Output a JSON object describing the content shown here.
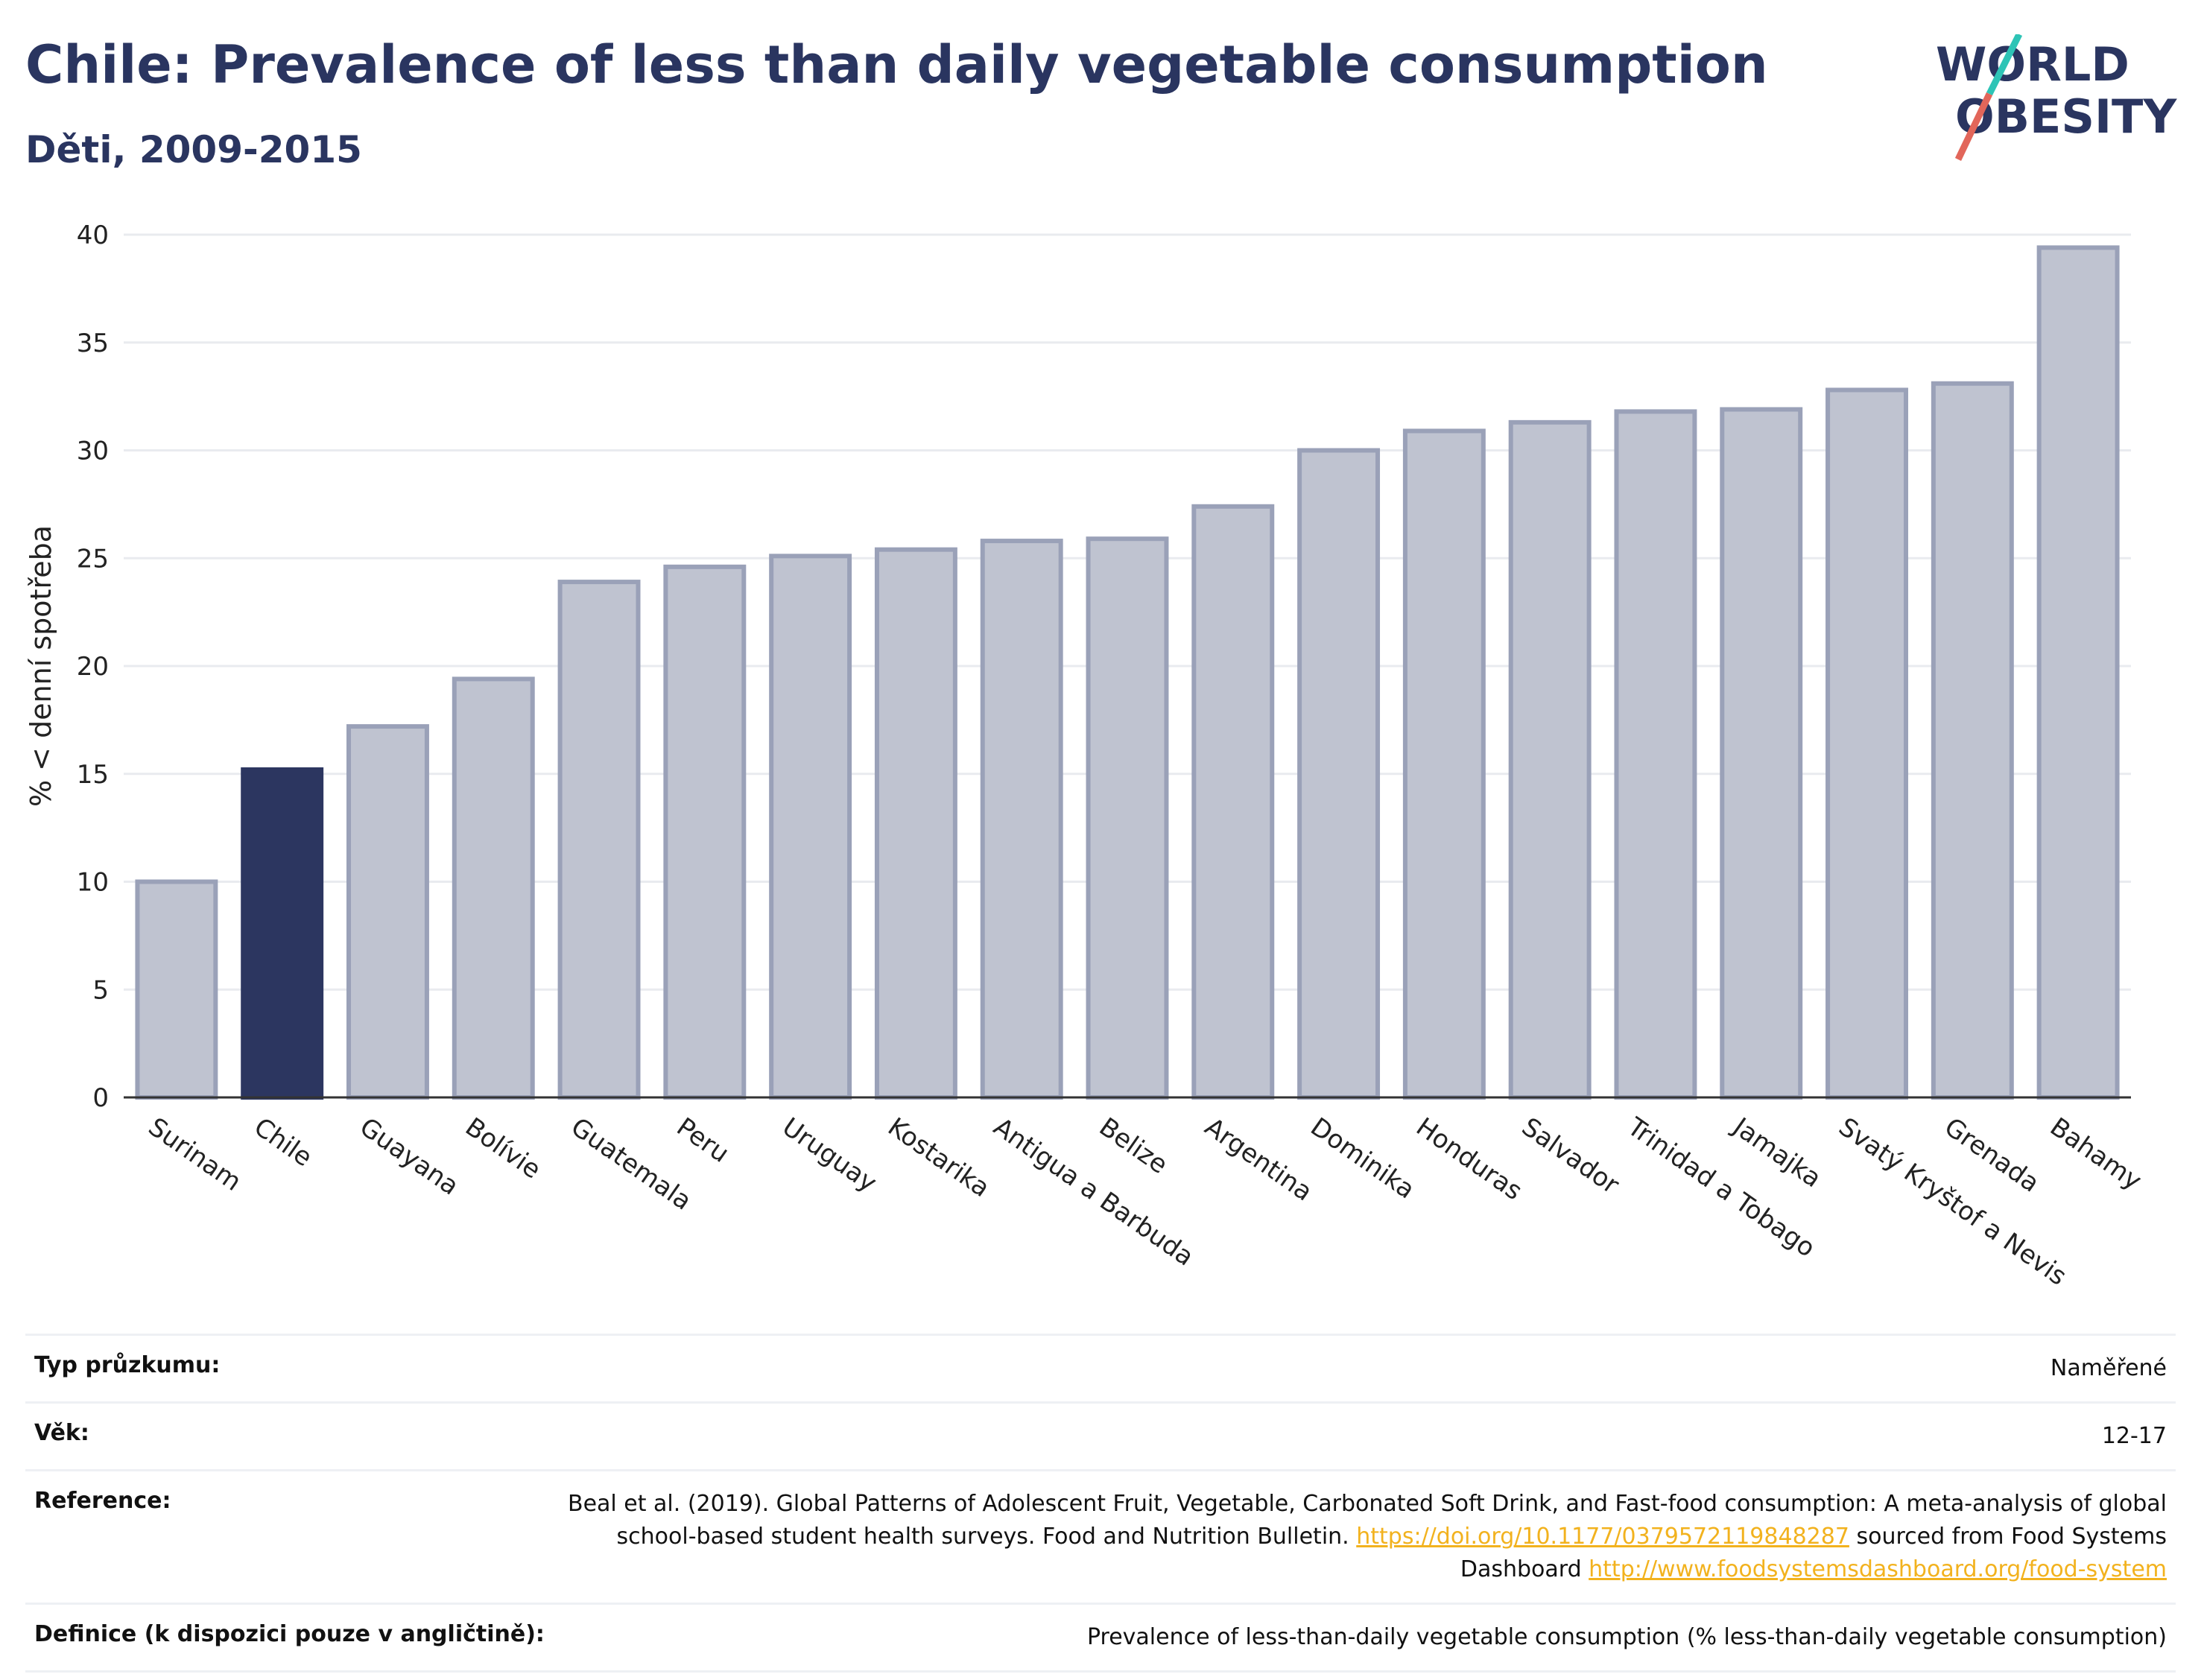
{
  "header": {
    "title": "Chile: Prevalence of less than daily vegetable consumption",
    "subtitle": "Děti, 2009-2015",
    "logo_line1": "WORLD",
    "logo_line2": "OBESITY"
  },
  "colors": {
    "bar": "#bfc3d0",
    "bar_stroke": "#9aa1b8",
    "highlight": "#2c3660",
    "grid": "#e9ebef",
    "accent_teal": "#2ec4b6",
    "accent_red": "#e2665a"
  },
  "chart_data": {
    "type": "bar",
    "title": "Chile: Prevalence of less than daily vegetable consumption",
    "subtitle": "Děti, 2009-2015",
    "xlabel": "",
    "ylabel": "% < denní spotřeba",
    "ylim": [
      0,
      40
    ],
    "yticks": [
      0,
      5,
      10,
      15,
      20,
      25,
      30,
      35,
      40
    ],
    "grid": true,
    "highlight": "Chile",
    "categories": [
      "Surinam",
      "Chile",
      "Guayana",
      "Bolívie",
      "Guatemala",
      "Peru",
      "Uruguay",
      "Kostarika",
      "Antigua a Barbuda",
      "Belize",
      "Argentina",
      "Dominika",
      "Honduras",
      "Salvador",
      "Trinidad a Tobago",
      "Jamajka",
      "Svatý Kryštof a Nevis",
      "Grenada",
      "Bahamy"
    ],
    "values": [
      10.0,
      15.2,
      17.2,
      19.4,
      23.9,
      24.6,
      25.1,
      25.4,
      25.8,
      25.9,
      27.4,
      30.0,
      30.9,
      31.3,
      31.8,
      31.9,
      32.8,
      33.1,
      39.4
    ]
  },
  "meta": {
    "survey_label": "Typ průzkumu:",
    "survey_value": "Naměřené",
    "age_label": "Věk:",
    "age_value": "12-17",
    "reference_label": "Reference:",
    "reference_text_1": "Beal et al. (2019). Global Patterns of Adolescent Fruit, Vegetable, Carbonated Soft Drink, and Fast-food consumption: A meta-analysis of global school-based student health surveys. Food and Nutrition Bulletin. ",
    "reference_link_1": "https://doi.org/10.1177/0379572119848287",
    "reference_text_2": " sourced from Food Systems Dashboard ",
    "reference_link_2": "http://www.foodsystemsdashboard.org/food-system",
    "definition_label": "Definice (k dispozici pouze v angličtině):",
    "definition_value": "Prevalence of less-than-daily vegetable consumption (% less-than-daily vegetable consumption)"
  }
}
